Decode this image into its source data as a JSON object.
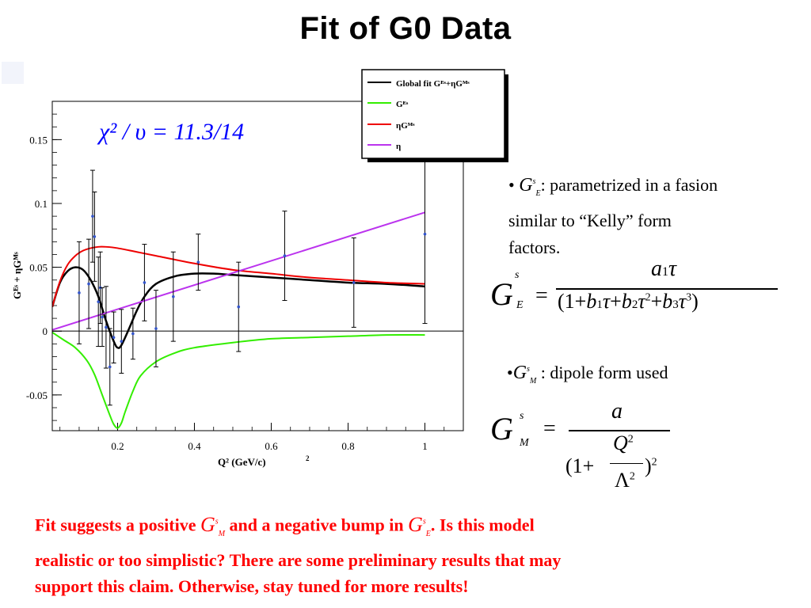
{
  "slide_title": "Fit of G0 Data",
  "chart_data": {
    "type": "line",
    "xlabel": "Q² (GeV/c)",
    "xlabel_exp": "2",
    "ylabel": "Gᴱˢ + ηGᴹˢ",
    "xlim": [
      0.03,
      1.1
    ],
    "ylim": [
      -0.078,
      0.18
    ],
    "x_ticks": [
      0.2,
      0.4,
      0.6,
      0.8,
      1
    ],
    "x_tick_labels": [
      "0.2",
      "0.4",
      "0.6",
      "0.8",
      "1"
    ],
    "y_ticks": [
      -0.05,
      0,
      0.05,
      0.1,
      0.15
    ],
    "y_tick_labels": [
      "-0.05",
      "0",
      "0.05",
      "0.1",
      "0.15"
    ],
    "annotation": "χ² / υ = 11.3/14",
    "legend": {
      "placement": "top-right",
      "entries": [
        "Global fit  Gᴱˢ+ηGᴹˢ",
        "Gᴱˢ",
        "ηGᴹˢ",
        "η"
      ]
    },
    "series": [
      {
        "name": "Global fit",
        "color": "#000000",
        "x": [
          0.03,
          0.05,
          0.07,
          0.09,
          0.11,
          0.13,
          0.15,
          0.17,
          0.19,
          0.2,
          0.21,
          0.23,
          0.25,
          0.27,
          0.3,
          0.35,
          0.4,
          0.45,
          0.5,
          0.6,
          0.7,
          0.8,
          0.9,
          1.0
        ],
        "y": [
          0.019,
          0.038,
          0.047,
          0.05,
          0.048,
          0.04,
          0.027,
          0.008,
          -0.008,
          -0.013,
          -0.011,
          0.002,
          0.016,
          0.027,
          0.037,
          0.043,
          0.045,
          0.045,
          0.044,
          0.042,
          0.04,
          0.038,
          0.037,
          0.035
        ]
      },
      {
        "name": "G_E^s",
        "color": "#33ee00",
        "x": [
          0.03,
          0.06,
          0.09,
          0.12,
          0.14,
          0.16,
          0.18,
          0.19,
          0.2,
          0.21,
          0.22,
          0.24,
          0.26,
          0.3,
          0.35,
          0.4,
          0.5,
          0.6,
          0.7,
          0.8,
          0.9,
          1.0
        ],
        "y": [
          -0.001,
          -0.007,
          -0.013,
          -0.023,
          -0.034,
          -0.05,
          -0.066,
          -0.073,
          -0.076,
          -0.072,
          -0.063,
          -0.047,
          -0.035,
          -0.024,
          -0.017,
          -0.013,
          -0.009,
          -0.006,
          -0.005,
          -0.004,
          -0.003,
          -0.003
        ]
      },
      {
        "name": "eta G_M^s",
        "color": "#ee0000",
        "x": [
          0.03,
          0.05,
          0.07,
          0.09,
          0.11,
          0.13,
          0.15,
          0.17,
          0.2,
          0.25,
          0.3,
          0.4,
          0.5,
          0.6,
          0.7,
          0.8,
          0.9,
          1.0
        ],
        "y": [
          0.019,
          0.039,
          0.052,
          0.059,
          0.063,
          0.065,
          0.066,
          0.066,
          0.065,
          0.062,
          0.059,
          0.053,
          0.048,
          0.045,
          0.042,
          0.04,
          0.038,
          0.037
        ]
      },
      {
        "name": "eta",
        "color": "#bb33ee",
        "x": [
          0.03,
          1.0
        ],
        "y": [
          0.001,
          0.093
        ]
      }
    ],
    "data_points": [
      {
        "x": 0.1,
        "y": 0.03,
        "err": 0.04
      },
      {
        "x": 0.125,
        "y": 0.037,
        "err": 0.035
      },
      {
        "x": 0.135,
        "y": 0.09,
        "err": 0.036
      },
      {
        "x": 0.14,
        "y": 0.074,
        "err": 0.035
      },
      {
        "x": 0.15,
        "y": 0.023,
        "err": 0.035
      },
      {
        "x": 0.155,
        "y": 0.034,
        "err": 0.028
      },
      {
        "x": 0.16,
        "y": 0.011,
        "err": 0.023
      },
      {
        "x": 0.17,
        "y": 0.003,
        "err": 0.032
      },
      {
        "x": 0.18,
        "y": -0.028,
        "err": 0.03
      },
      {
        "x": 0.19,
        "y": -0.005,
        "err": 0.02
      },
      {
        "x": 0.21,
        "y": -0.008,
        "err": 0.025
      },
      {
        "x": 0.24,
        "y": -0.002,
        "err": 0.02
      },
      {
        "x": 0.27,
        "y": 0.038,
        "err": 0.03
      },
      {
        "x": 0.3,
        "y": 0.002,
        "err": 0.03
      },
      {
        "x": 0.345,
        "y": 0.027,
        "err": 0.035
      },
      {
        "x": 0.41,
        "y": 0.054,
        "err": 0.022
      },
      {
        "x": 0.515,
        "y": 0.019,
        "err": 0.035
      },
      {
        "x": 0.635,
        "y": 0.059,
        "err": 0.035
      },
      {
        "x": 0.815,
        "y": 0.038,
        "err": 0.035
      },
      {
        "x": 1.0,
        "y": 0.076,
        "err": 0.07
      }
    ]
  },
  "bullets": {
    "ge_text_1": ": parametrized in a fasion",
    "ge_text_2": "similar to “Kelly” form",
    "ge_text_3": "factors.",
    "gm_text": ": dipole form used"
  },
  "footer": {
    "part1": "Fit suggests a positive",
    "part2": "and a negative bump in",
    "part3": ".   Is this model",
    "line2": "realistic or too simplistic?  There are some preliminary results that may",
    "line3": "support this claim.  Otherwise, stay tuned for more results!"
  }
}
